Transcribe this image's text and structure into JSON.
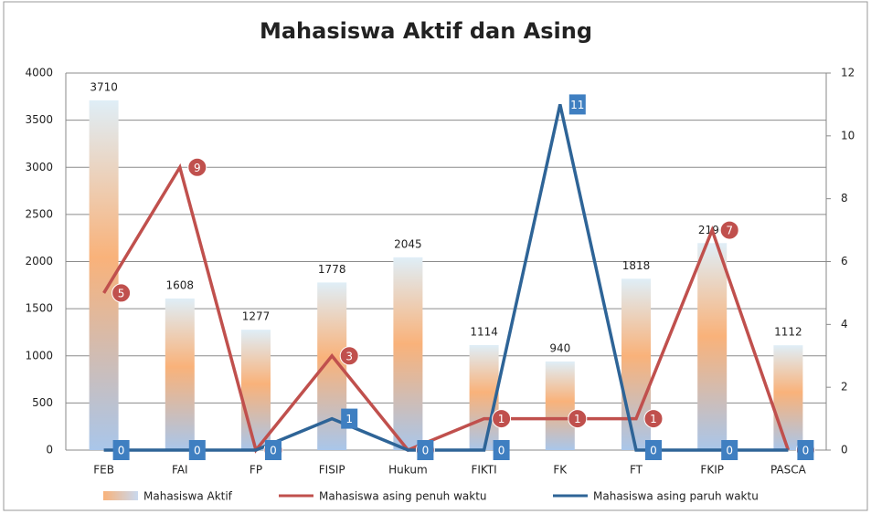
{
  "chart_data": {
    "type": "bar-line",
    "title": "Mahasiswa Aktif dan Asing",
    "categories": [
      "FEB",
      "FAI",
      "FP",
      "FISIP",
      "Hukum",
      "FIKTI",
      "FK",
      "FT",
      "FKIP",
      "PASCA"
    ],
    "series": [
      {
        "name": "Mahasiswa Aktif",
        "type": "bar",
        "color": "#f7b57d",
        "values": [
          3710,
          1608,
          1277,
          1778,
          2045,
          1114,
          940,
          1818,
          2196,
          1112
        ]
      },
      {
        "name": "Mahasiswa asing penuh waktu",
        "type": "line",
        "axis": "y2",
        "color": "#c0504d",
        "values": [
          5,
          9,
          0,
          3,
          0,
          1,
          1,
          1,
          7,
          0
        ]
      },
      {
        "name": "Mahasiswa asing paruh waktu",
        "type": "line",
        "axis": "y2",
        "color": "#2e6497",
        "values": [
          0,
          0,
          0,
          1,
          0,
          0,
          11,
          0,
          0,
          0
        ]
      }
    ],
    "ylim": [
      0,
      4000
    ],
    "yticks": [
      0,
      500,
      1000,
      1500,
      2000,
      2500,
      3000,
      3500,
      4000
    ],
    "y2lim": [
      0,
      12
    ],
    "y2ticks": [
      0,
      2,
      4,
      6,
      8,
      10,
      12
    ],
    "grid": true,
    "legend": "bottom"
  }
}
